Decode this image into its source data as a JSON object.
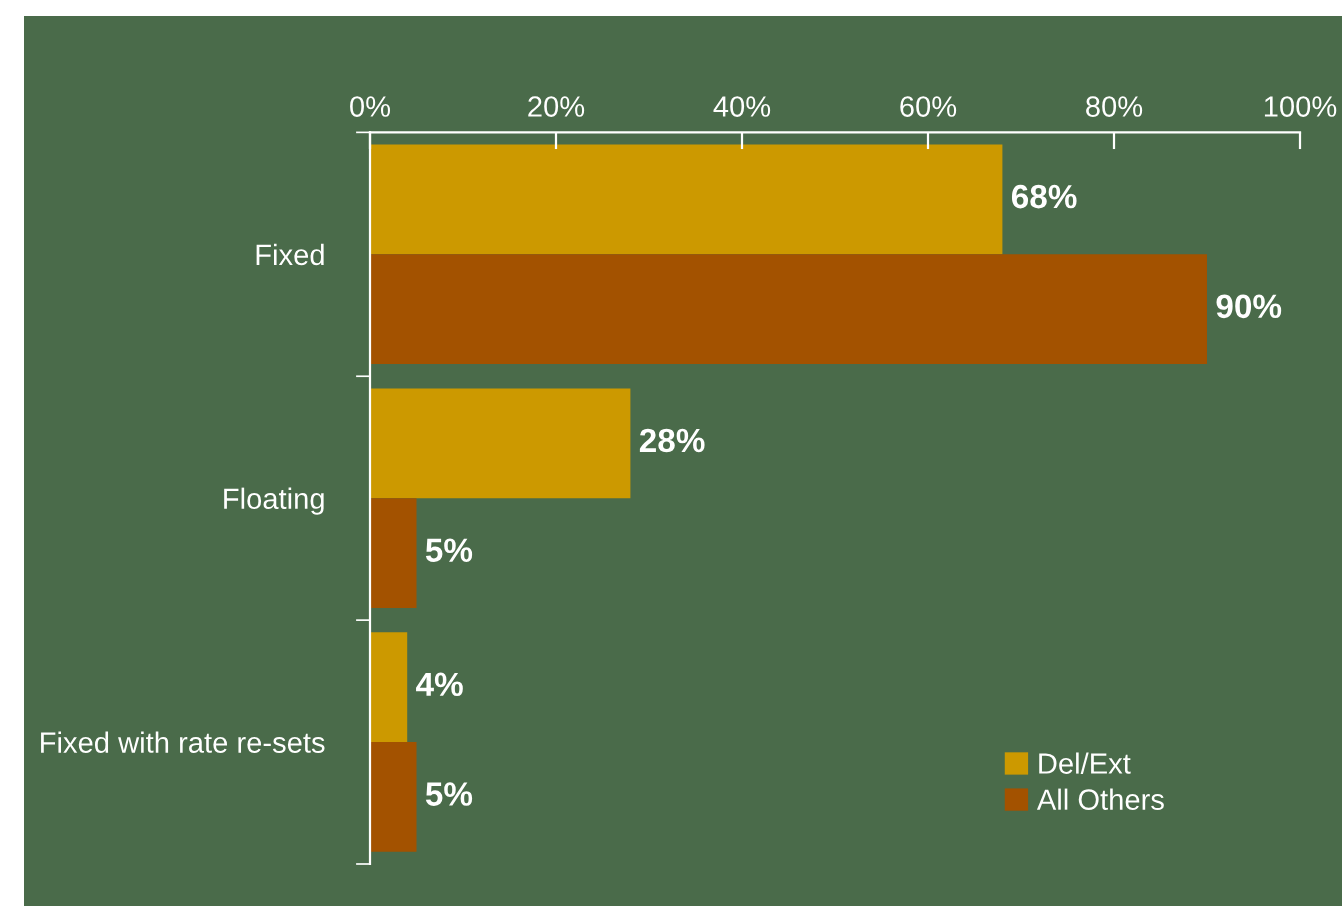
{
  "chart_data": {
    "type": "bar",
    "orientation": "horizontal",
    "categories": [
      "Fixed",
      "Floating",
      "Fixed with rate re-sets"
    ],
    "series": [
      {
        "name": "Del/Ext",
        "color": "#cc9900",
        "values": [
          68,
          28,
          4
        ],
        "value_labels": [
          "68%",
          "28%",
          "4%"
        ]
      },
      {
        "name": "All Others",
        "color": "#a35200",
        "values": [
          90,
          5,
          5
        ],
        "value_labels": [
          "90%",
          "5%",
          "5%"
        ]
      }
    ],
    "xlim": [
      0,
      100
    ],
    "xticks": [
      {
        "value": 0,
        "label": "0%"
      },
      {
        "value": 20,
        "label": "20%"
      },
      {
        "value": 40,
        "label": "40%"
      },
      {
        "value": 60,
        "label": "60%"
      },
      {
        "value": 80,
        "label": "80%"
      },
      {
        "value": 100,
        "label": "100%"
      }
    ],
    "grid": false,
    "legend": "bottom right"
  }
}
